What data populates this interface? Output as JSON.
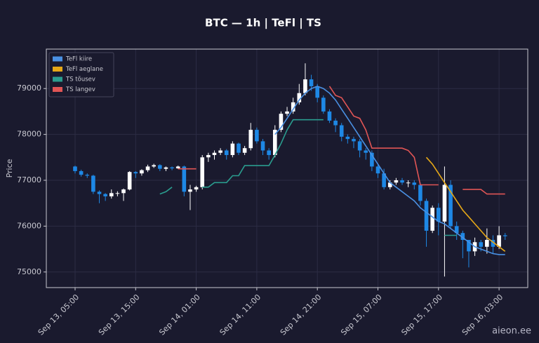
{
  "chart_data": {
    "type": "candlestick",
    "title": "BTC — 1h  |  TeFl  |  TS",
    "ylabel": "Price",
    "watermark": "aieon.ee",
    "categories": [
      "Sep 13, 05:00",
      null,
      null,
      null,
      null,
      null,
      null,
      null,
      null,
      null,
      "Sep 13, 15:00",
      null,
      null,
      null,
      null,
      null,
      null,
      null,
      null,
      null,
      "Sep 14, 01:00",
      null,
      null,
      null,
      null,
      null,
      null,
      null,
      null,
      null,
      "Sep 14, 11:00",
      null,
      null,
      null,
      null,
      null,
      null,
      null,
      null,
      null,
      "Sep 14, 21:00",
      null,
      null,
      null,
      null,
      null,
      null,
      null,
      null,
      null,
      "Sep 15, 07:00",
      null,
      null,
      null,
      null,
      null,
      null,
      null,
      null,
      null,
      "Sep 15, 17:00",
      null,
      null,
      null,
      null,
      null,
      null,
      null,
      null,
      null,
      "Sep 16, 03:00",
      null
    ],
    "open": [
      77300,
      77200,
      77120,
      77100,
      76750,
      76700,
      76650,
      76720,
      76720,
      76800,
      77180,
      77150,
      77220,
      77300,
      77330,
      77250,
      77280,
      77260,
      77300,
      76750,
      76800,
      76850,
      77500,
      77550,
      77600,
      77650,
      77550,
      77800,
      77600,
      77700,
      78100,
      77850,
      77650,
      77550,
      78100,
      78450,
      78500,
      78700,
      78900,
      79200,
      79050,
      78800,
      78500,
      78300,
      78200,
      77950,
      77900,
      77850,
      77650,
      77600,
      77300,
      77150,
      76850,
      76950,
      77000,
      76950,
      76950,
      76900,
      76550,
      75900,
      76400,
      76100,
      76900,
      76000,
      75850,
      75700,
      75450,
      75650,
      75550,
      75700,
      75550,
      75800
    ],
    "high": [
      77320,
      77230,
      77150,
      77120,
      76780,
      76720,
      76800,
      76760,
      76820,
      77200,
      77200,
      77240,
      77340,
      77360,
      77350,
      77300,
      77300,
      77320,
      77320,
      76900,
      76880,
      77550,
      77600,
      77650,
      77700,
      77680,
      77850,
      77820,
      77750,
      78250,
      78150,
      77900,
      77700,
      78200,
      78500,
      78600,
      78800,
      79100,
      79550,
      79300,
      79100,
      78850,
      78550,
      78350,
      78250,
      78000,
      77950,
      77900,
      77700,
      77650,
      77350,
      77250,
      77000,
      77050,
      77050,
      77000,
      77000,
      76950,
      76600,
      76450,
      76500,
      77300,
      77000,
      76100,
      75900,
      75700,
      75750,
      75700,
      75950,
      75800,
      76000,
      75850
    ],
    "low": [
      77150,
      77080,
      77050,
      76700,
      76500,
      76550,
      76600,
      76650,
      76550,
      76780,
      77050,
      77100,
      77180,
      77270,
      77200,
      77200,
      77220,
      77250,
      76650,
      76350,
      76750,
      76800,
      77400,
      77450,
      77550,
      77450,
      77500,
      77550,
      77550,
      77650,
      77800,
      77550,
      77450,
      77500,
      78050,
      78400,
      78450,
      78650,
      78850,
      78950,
      78700,
      78450,
      78250,
      78050,
      77850,
      77800,
      77700,
      77500,
      77450,
      77200,
      77050,
      76800,
      76800,
      76900,
      76900,
      76850,
      76800,
      76450,
      75550,
      75850,
      75800,
      74900,
      75950,
      75700,
      75300,
      75100,
      75350,
      75450,
      75400,
      75400,
      75500,
      75700
    ],
    "close": [
      77200,
      77120,
      77100,
      76750,
      76700,
      76650,
      76720,
      76720,
      76800,
      77180,
      77150,
      77220,
      77300,
      77330,
      77250,
      77280,
      77260,
      77300,
      76750,
      76800,
      76850,
      77500,
      77550,
      77600,
      77650,
      77550,
      77800,
      77600,
      77700,
      78100,
      77850,
      77650,
      77550,
      78100,
      78450,
      78500,
      78700,
      78900,
      79200,
      79050,
      78800,
      78500,
      78300,
      78200,
      77950,
      77900,
      77850,
      77650,
      77600,
      77300,
      77150,
      76850,
      76950,
      77000,
      76950,
      76950,
      76900,
      76550,
      75900,
      76400,
      76100,
      76900,
      76000,
      75850,
      75700,
      75450,
      75650,
      75550,
      75700,
      75550,
      75800,
      75780
    ],
    "up_color": "#ffffff",
    "down_color": "#1e88e5",
    "series": [
      {
        "name": "TeFl kiire",
        "color": "#4a90e2",
        "values": [
          null,
          null,
          null,
          null,
          null,
          null,
          null,
          null,
          null,
          null,
          null,
          null,
          null,
          null,
          null,
          null,
          null,
          null,
          null,
          null,
          null,
          null,
          null,
          null,
          null,
          null,
          null,
          null,
          null,
          null,
          null,
          null,
          null,
          78000,
          78150,
          78350,
          78550,
          78750,
          78900,
          79000,
          79050,
          79000,
          78900,
          78750,
          78550,
          78350,
          78150,
          77950,
          77750,
          77550,
          77350,
          77150,
          76950,
          76850,
          76750,
          76650,
          76550,
          76400,
          76300,
          76200,
          76100,
          76050,
          75950,
          75850,
          75750,
          75650,
          75550,
          75500,
          75450,
          75400,
          75380,
          75380
        ]
      },
      {
        "name": "TeFl aeglane",
        "color": "#e6a817",
        "values": [
          null,
          null,
          null,
          null,
          null,
          null,
          null,
          null,
          null,
          null,
          null,
          null,
          null,
          null,
          null,
          null,
          null,
          null,
          null,
          null,
          null,
          null,
          null,
          null,
          null,
          null,
          null,
          null,
          null,
          null,
          null,
          null,
          null,
          null,
          null,
          null,
          null,
          null,
          null,
          null,
          null,
          null,
          null,
          null,
          null,
          null,
          null,
          null,
          null,
          null,
          null,
          null,
          null,
          null,
          null,
          null,
          null,
          null,
          77500,
          77350,
          77150,
          76950,
          76750,
          76550,
          76350,
          76200,
          76050,
          75900,
          75750,
          75650,
          75550,
          75450
        ]
      },
      {
        "name": "TS tõusev",
        "color": "#2a9d8f",
        "values": [
          null,
          null,
          null,
          null,
          null,
          null,
          null,
          null,
          null,
          null,
          null,
          null,
          null,
          null,
          76700,
          76750,
          76850,
          null,
          null,
          null,
          null,
          76850,
          76850,
          76950,
          76950,
          76950,
          77100,
          77100,
          77320,
          77320,
          77320,
          77320,
          77320,
          77550,
          77800,
          78100,
          78320,
          78320,
          78320,
          78320,
          78320,
          78320,
          null,
          null,
          null,
          null,
          null,
          null,
          null,
          null,
          null,
          null,
          null,
          null,
          null,
          null,
          null,
          null,
          null,
          null,
          null,
          75800,
          75800,
          75800,
          null,
          null,
          null,
          null,
          null,
          null,
          null,
          null
        ]
      },
      {
        "name": "TS langev",
        "color": "#e05555",
        "values": [
          null,
          null,
          null,
          null,
          null,
          null,
          null,
          null,
          null,
          null,
          null,
          null,
          null,
          null,
          null,
          null,
          null,
          77250,
          77250,
          77250,
          77250,
          null,
          null,
          null,
          null,
          null,
          null,
          null,
          null,
          null,
          null,
          null,
          null,
          null,
          null,
          null,
          null,
          null,
          null,
          null,
          null,
          null,
          79050,
          78850,
          78800,
          78600,
          78400,
          78350,
          78100,
          77700,
          77700,
          77700,
          77700,
          77700,
          77700,
          77650,
          77500,
          76900,
          76900,
          76900,
          76900,
          null,
          null,
          null,
          76800,
          76800,
          76800,
          76800,
          76700,
          76700,
          76700,
          76700
        ]
      }
    ],
    "ylim": [
      74660,
      79860
    ],
    "yticks": [
      75000,
      76000,
      77000,
      78000,
      79000
    ],
    "grid": true,
    "legend": "upper left"
  }
}
